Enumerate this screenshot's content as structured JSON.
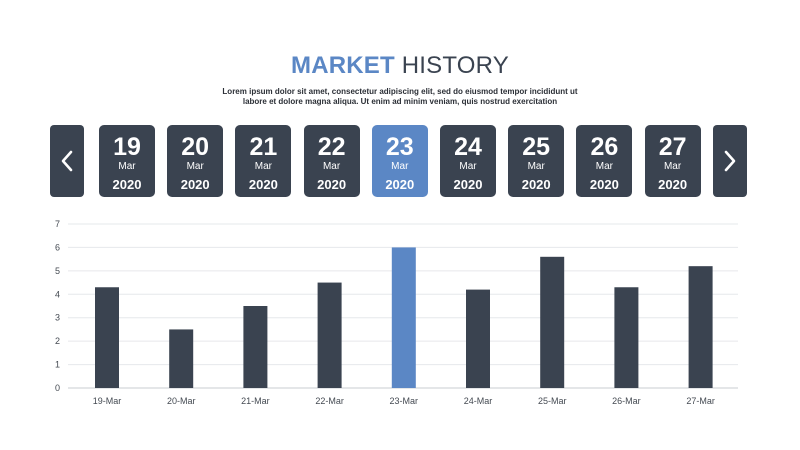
{
  "header": {
    "title_strong": "MARKET",
    "title_light": "HISTORY",
    "subtitle_line1": "Lorem ipsum dolor sit amet, consectetur adipiscing elit, sed do eiusmod tempor incididunt ut",
    "subtitle_line2": "labore et dolore magna aliqua. Ut enim ad minim veniam, quis nostrud exercitation"
  },
  "nav": {
    "prev_icon": "chevron-left-icon",
    "next_icon": "chevron-right-icon"
  },
  "dates": [
    {
      "day": "19",
      "month": "Mar",
      "year": "2020",
      "active": false
    },
    {
      "day": "20",
      "month": "Mar",
      "year": "2020",
      "active": false
    },
    {
      "day": "21",
      "month": "Mar",
      "year": "2020",
      "active": false
    },
    {
      "day": "22",
      "month": "Mar",
      "year": "2020",
      "active": false
    },
    {
      "day": "23",
      "month": "Mar",
      "year": "2020",
      "active": true
    },
    {
      "day": "24",
      "month": "Mar",
      "year": "2020",
      "active": false
    },
    {
      "day": "25",
      "month": "Mar",
      "year": "2020",
      "active": false
    },
    {
      "day": "26",
      "month": "Mar",
      "year": "2020",
      "active": false
    },
    {
      "day": "27",
      "month": "Mar",
      "year": "2020",
      "active": false
    }
  ],
  "colors": {
    "bar": "#3a4350",
    "highlight": "#5b87c5",
    "grid": "#e6e8eb"
  },
  "chart_data": {
    "type": "bar",
    "categories": [
      "19-Mar",
      "20-Mar",
      "21-Mar",
      "22-Mar",
      "23-Mar",
      "24-Mar",
      "25-Mar",
      "26-Mar",
      "27-Mar"
    ],
    "values": [
      4.3,
      2.5,
      3.5,
      4.5,
      6.0,
      4.2,
      5.6,
      4.3,
      5.2
    ],
    "highlight_category": "23-Mar",
    "ylim": [
      0,
      7
    ],
    "yticks": [
      0,
      1,
      2,
      3,
      4,
      5,
      6,
      7
    ],
    "grid": true,
    "legend": "none"
  }
}
